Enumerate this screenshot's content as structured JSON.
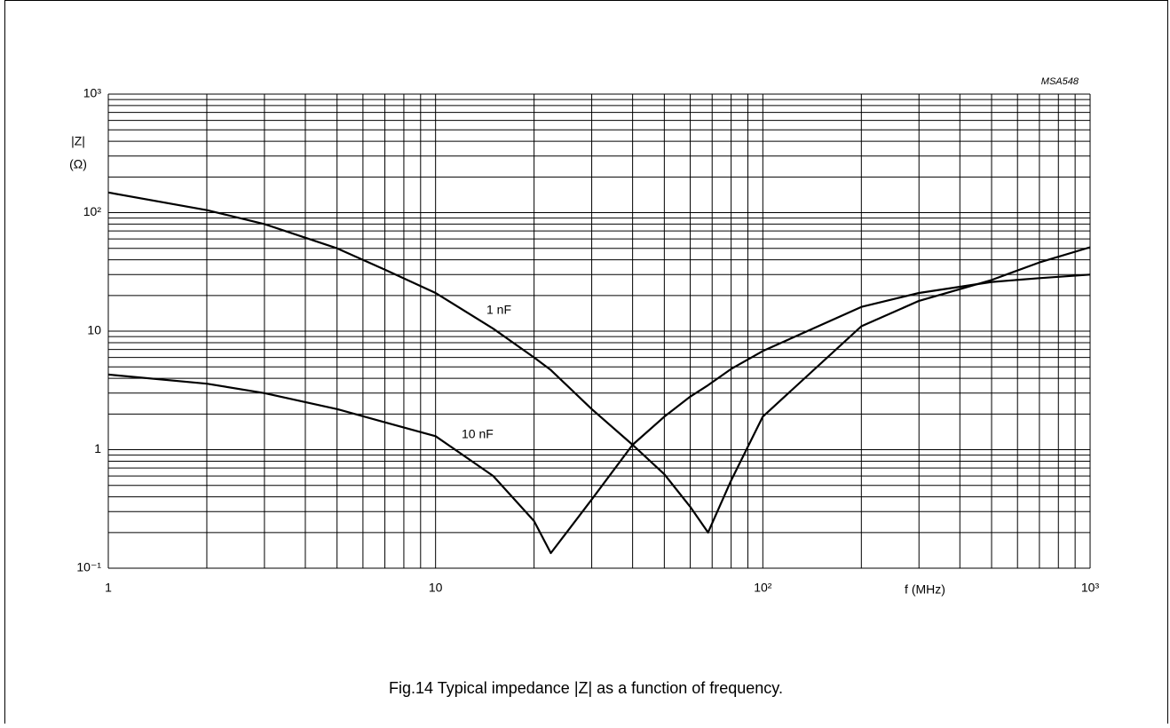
{
  "chart_data": {
    "type": "line",
    "caption": "Fig.14  Typical impedance |Z| as a function of frequency.",
    "code": "MSA548",
    "xlabel": "f  (MHz)",
    "ylabel": "|Z|",
    "yunit": "(Ω)",
    "xscale": "log",
    "yscale": "log",
    "grid": true,
    "minor_grid": true,
    "x": [
      1,
      2,
      3,
      5,
      7,
      10,
      15,
      20,
      22.5,
      30,
      40,
      50,
      60,
      68,
      80,
      100,
      200,
      300,
      500,
      700,
      1000
    ],
    "series": [
      {
        "name": "1 nF",
        "color": "#000000",
        "values": [
          148,
          105,
          80,
          50,
          33,
          21,
          10.5,
          6,
          4.7,
          2.2,
          1.1,
          0.62,
          0.33,
          0.2,
          0.55,
          1.9,
          11,
          18,
          27,
          38,
          51
        ]
      },
      {
        "name": "10 nF",
        "color": "#000000",
        "values": [
          4.3,
          3.6,
          3.0,
          2.2,
          1.7,
          1.3,
          0.6,
          0.25,
          0.134,
          0.38,
          1.1,
          1.9,
          2.8,
          3.5,
          4.8,
          6.8,
          16,
          21,
          26,
          28,
          30
        ]
      }
    ],
    "xlim": [
      1,
      1000
    ],
    "ylim": [
      0.1,
      1000
    ],
    "xticks": [
      1,
      10,
      {
        "value": 100,
        "label": "10²"
      },
      {
        "value": 1000,
        "label": "10³"
      }
    ],
    "yticks": [
      {
        "value": 0.1,
        "label": "10⁻¹"
      },
      1,
      10,
      {
        "value": 100,
        "label": "10²"
      },
      {
        "value": 1000,
        "label": "10³"
      }
    ]
  }
}
